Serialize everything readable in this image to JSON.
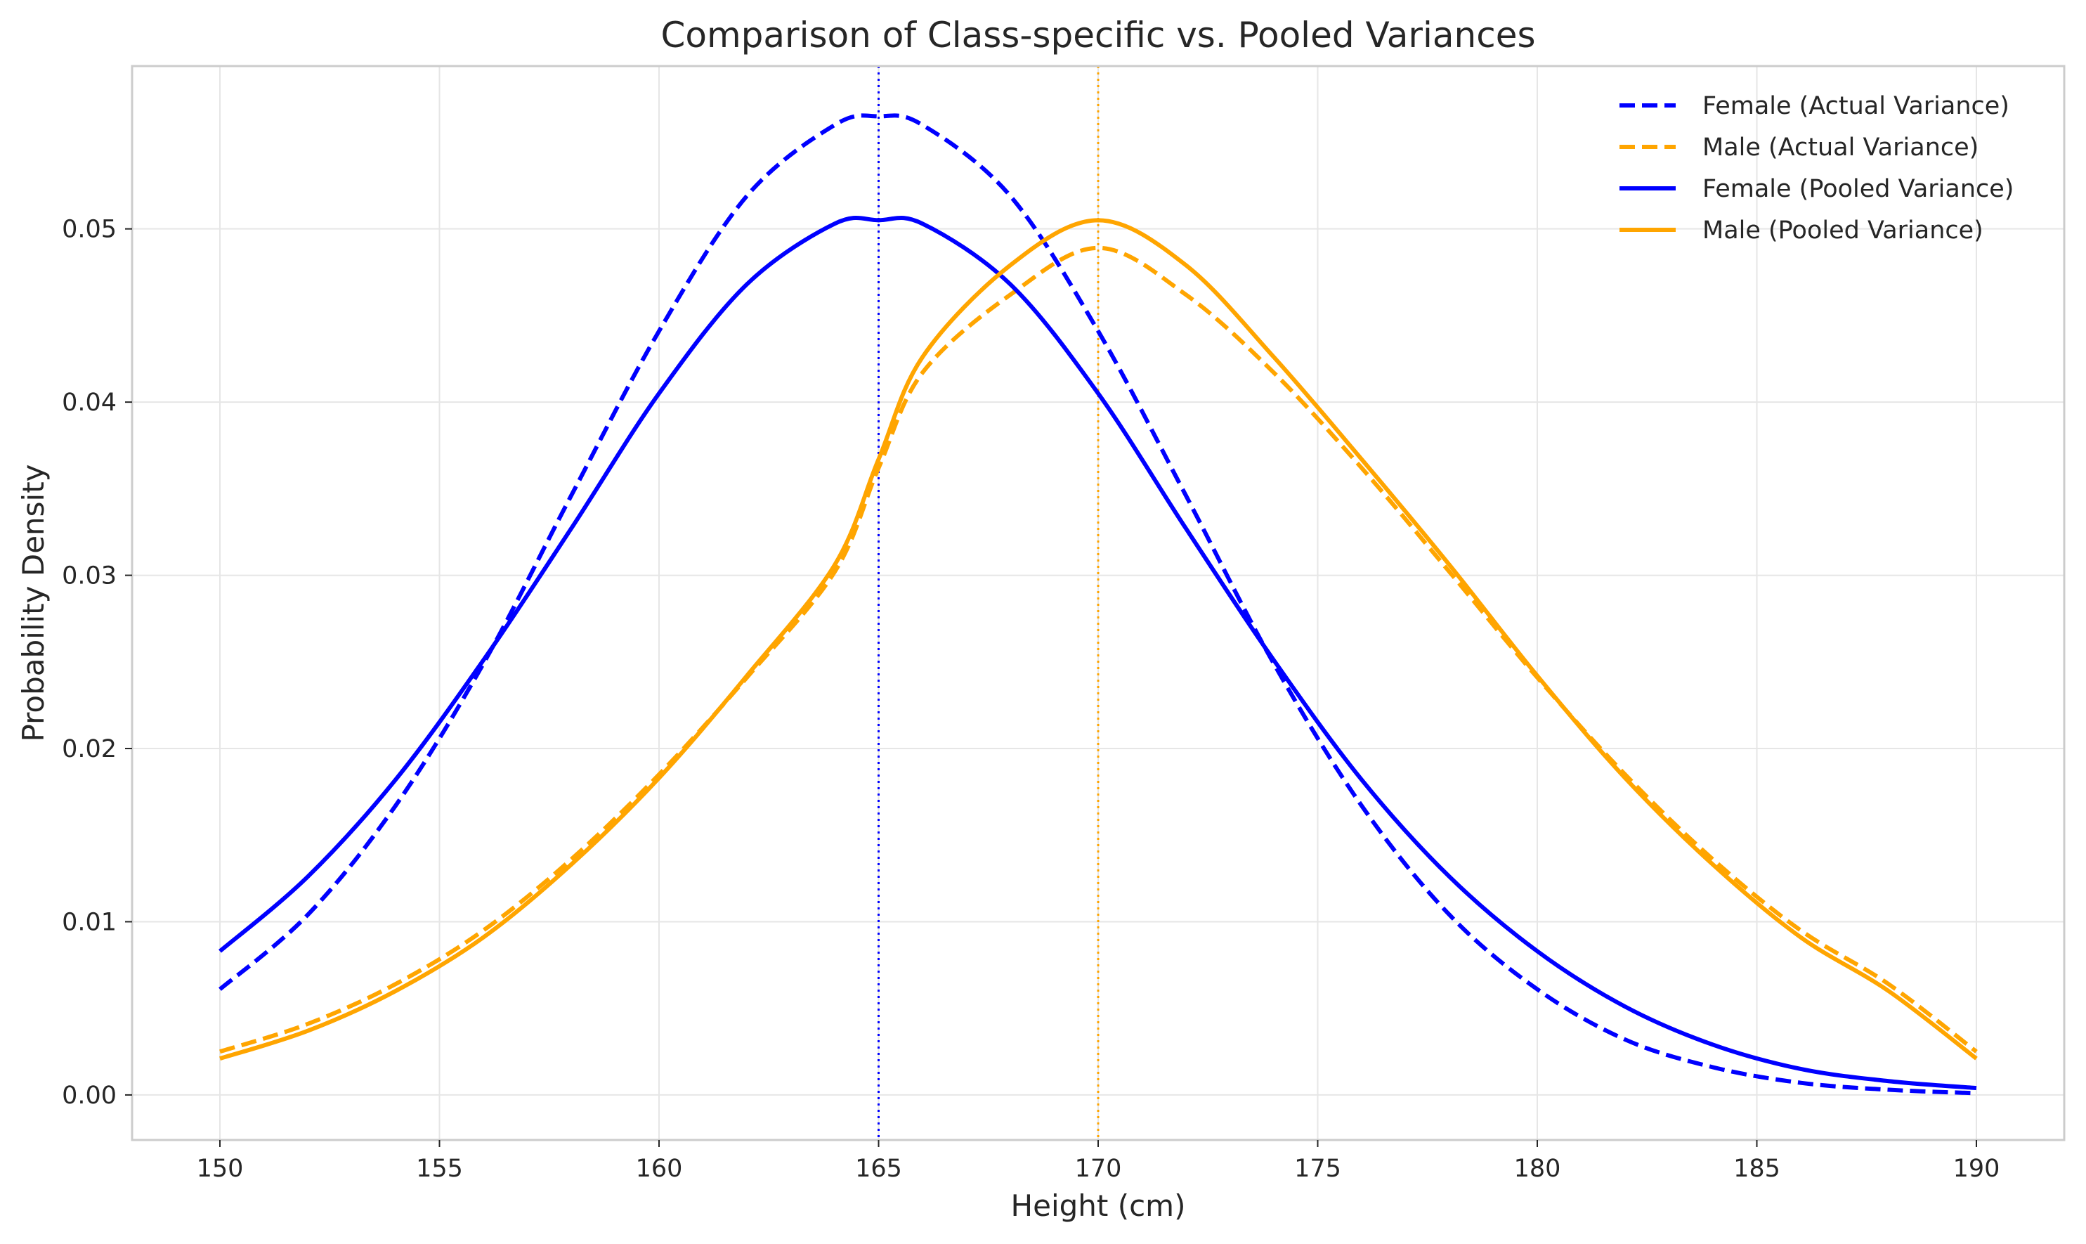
{
  "chart_data": {
    "type": "line",
    "title": "Comparison of Class-specific vs. Pooled Variances",
    "xlabel": "Height (cm)",
    "ylabel": "Probability Density",
    "xlim": [
      148,
      192
    ],
    "ylim": [
      -0.0026,
      0.0594
    ],
    "xticks": [
      150,
      155,
      160,
      165,
      170,
      175,
      180,
      185,
      190
    ],
    "yticks": [
      0.0,
      0.01,
      0.02,
      0.03,
      0.04,
      0.05
    ],
    "ytick_labels": [
      "0.00",
      "0.01",
      "0.02",
      "0.03",
      "0.04",
      "0.05"
    ],
    "grid": true,
    "legend_position": "top-right",
    "x": [
      150,
      152,
      154,
      156,
      158,
      160,
      162,
      164,
      165,
      166,
      168,
      170,
      172,
      174,
      176,
      178,
      180,
      182,
      184,
      186,
      188,
      190
    ],
    "series": [
      {
        "name": "Female (Actual Variance)",
        "color": "#0000ff",
        "dash": "dashed",
        "values": [
          0.0061,
          0.0104,
          0.0167,
          0.0249,
          0.0346,
          0.0441,
          0.0519,
          0.056,
          0.0565,
          0.056,
          0.0519,
          0.0441,
          0.0346,
          0.0249,
          0.0167,
          0.0104,
          0.0061,
          0.0032,
          0.0016,
          0.0007,
          0.0003,
          0.0001
        ]
      },
      {
        "name": "Male (Actual Variance)",
        "color": "#ffa500",
        "dash": "dashed",
        "values": [
          0.0025,
          0.0041,
          0.0064,
          0.0095,
          0.0136,
          0.0185,
          0.0241,
          0.0302,
          0.0362,
          0.0417,
          0.0462,
          0.0489,
          0.0462,
          0.0417,
          0.0362,
          0.0302,
          0.0241,
          0.0185,
          0.0136,
          0.0095,
          0.0064,
          0.0025
        ]
      },
      {
        "name": "Female (Pooled Variance)",
        "color": "#0000ff",
        "dash": "solid",
        "values": [
          0.0083,
          0.0126,
          0.0182,
          0.0251,
          0.0327,
          0.0405,
          0.0468,
          0.0503,
          0.0505,
          0.0503,
          0.0468,
          0.0405,
          0.0327,
          0.0251,
          0.0182,
          0.0126,
          0.0083,
          0.0051,
          0.0029,
          0.0015,
          0.0008,
          0.0004
        ]
      },
      {
        "name": "Male (Pooled Variance)",
        "color": "#ffa500",
        "dash": "solid",
        "values": [
          0.0021,
          0.0037,
          0.006,
          0.0091,
          0.0133,
          0.0183,
          0.0242,
          0.0306,
          0.0367,
          0.0426,
          0.0479,
          0.0505,
          0.0479,
          0.0426,
          0.0367,
          0.0306,
          0.0242,
          0.0183,
          0.0133,
          0.0091,
          0.006,
          0.0021
        ]
      }
    ],
    "mean_lines": [
      {
        "x": 165,
        "color": "#0000ff",
        "dash": "dotted"
      },
      {
        "x": 170,
        "color": "#ffa500",
        "dash": "dotted"
      }
    ]
  }
}
